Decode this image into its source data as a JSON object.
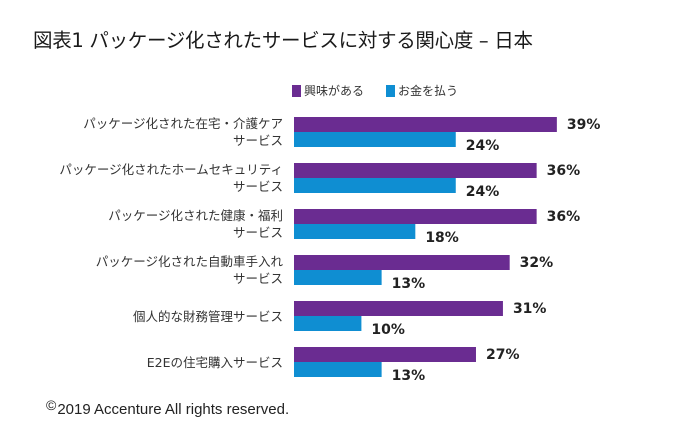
{
  "chart_data": {
    "type": "bar",
    "orientation": "horizontal",
    "title": "図表1 パッケージ化されたサービスに対する関心度 – 日本",
    "categories": [
      [
        "パッケージ化された在宅・介護ケア",
        "サービス"
      ],
      [
        "パッケージ化されたホームセキュリティ",
        "サービス"
      ],
      [
        "パッケージ化された健康・福利",
        "サービス"
      ],
      [
        "パッケージ化された自動車手入れ",
        "サービス"
      ],
      [
        "個人的な財務管理サービス"
      ],
      [
        "E2Eの住宅購入サービス"
      ]
    ],
    "series": [
      {
        "name": "興味がある",
        "color": "#6a2c91",
        "values": [
          39,
          36,
          36,
          32,
          31,
          27
        ]
      },
      {
        "name": "お金を払う",
        "color": "#0f8ed2",
        "values": [
          24,
          24,
          18,
          13,
          10,
          13
        ]
      }
    ],
    "value_suffix": "%",
    "xlim": [
      0,
      45
    ],
    "grid": false,
    "legend_position": "top"
  },
  "legend": {
    "items": [
      {
        "label": "興味がある",
        "color": "#6a2c91"
      },
      {
        "label": "お金を払う",
        "color": "#0f8ed2"
      }
    ]
  },
  "footer": {
    "copyright_symbol": "©",
    "copyright_text": "2019 Accenture All rights reserved."
  }
}
